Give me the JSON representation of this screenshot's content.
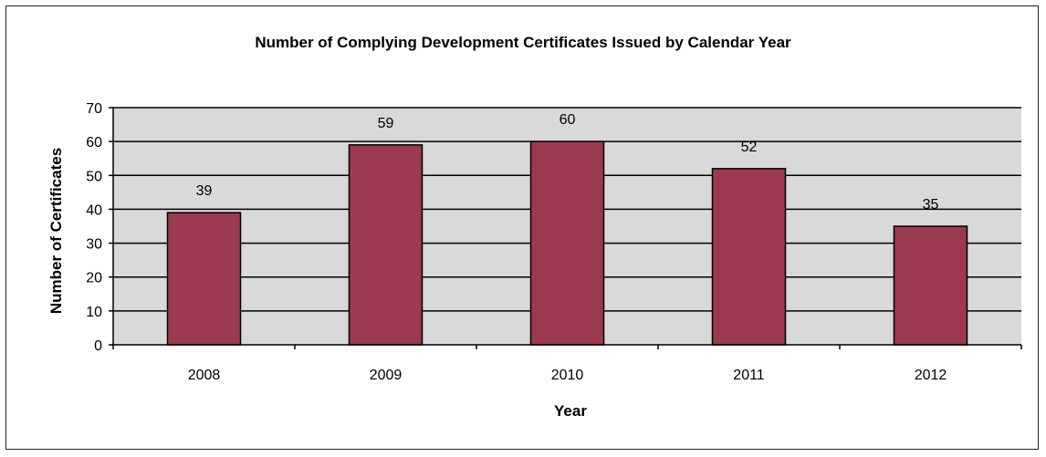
{
  "chart_data": {
    "type": "bar",
    "title": "Number of Complying Development Certificates Issued by Calendar Year",
    "xlabel": "Year",
    "ylabel": "Number of Certificates",
    "categories": [
      "2008",
      "2009",
      "2010",
      "2011",
      "2012"
    ],
    "values": [
      39,
      59,
      60,
      52,
      35
    ],
    "data_labels": [
      "39",
      "59",
      "60",
      "52",
      "35"
    ],
    "ylim": [
      0,
      70
    ],
    "yticks": [
      0,
      10,
      20,
      30,
      40,
      50,
      60,
      70
    ],
    "grid": true,
    "legend": "none",
    "colors": {
      "bar_fill": "#9b3a4f",
      "bar_stroke": "#000000",
      "plot_bg": "#d9d9d9",
      "grid": "#000000"
    }
  }
}
